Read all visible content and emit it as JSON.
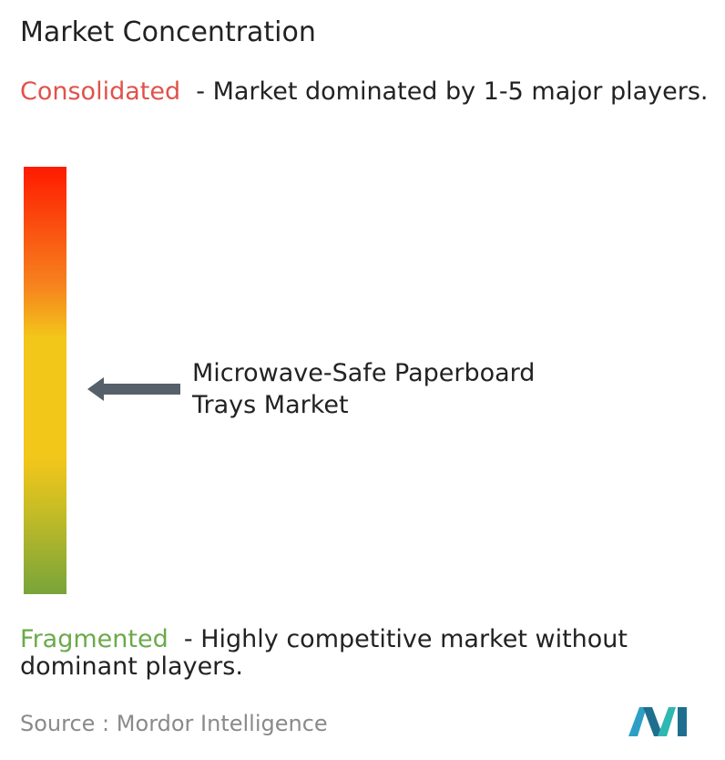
{
  "header": {
    "title": "Market Concentration"
  },
  "consolidated": {
    "label": "Consolidated",
    "description": "- Market dominated by 1-5 major players."
  },
  "market": {
    "label": "Microwave-Safe Paperboard Trays Market"
  },
  "fragmented": {
    "label": "Fragmented",
    "description": "- Highly competitive market without dominant players."
  },
  "source": {
    "label": "Source :",
    "name": "Mordor Intelligence"
  }
}
